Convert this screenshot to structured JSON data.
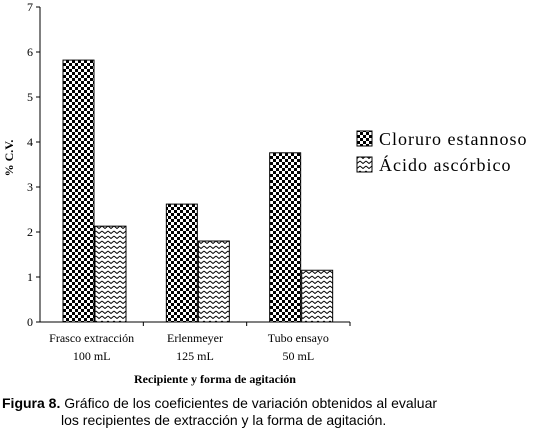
{
  "chart_data": {
    "type": "bar",
    "ylabel": "% C.V.",
    "xlabel": "Recipiente y forma de agitación",
    "ylim": [
      0,
      7
    ],
    "yticks": [
      "0",
      "1",
      "2",
      "3",
      "4",
      "5",
      "6",
      "7"
    ],
    "categories": [
      [
        "Frasco extracción",
        "100 mL"
      ],
      [
        "Erlenmeyer",
        "125 mL"
      ],
      [
        "Tubo ensayo",
        "50 mL"
      ]
    ],
    "series": [
      {
        "name": "Cloruro estannoso",
        "pattern": "checker",
        "values": [
          5.82,
          2.62,
          3.76
        ]
      },
      {
        "name": "Ácido ascórbico",
        "pattern": "zigzag",
        "values": [
          2.13,
          1.8,
          1.15
        ]
      }
    ],
    "legend_position": "right",
    "grid": false
  },
  "caption": {
    "label": "Figura 8.",
    "line1": " Gráfico de los coeficientes de variación obtenidos al evaluar",
    "line2": "los recipientes de extracción y la forma de agitación."
  }
}
